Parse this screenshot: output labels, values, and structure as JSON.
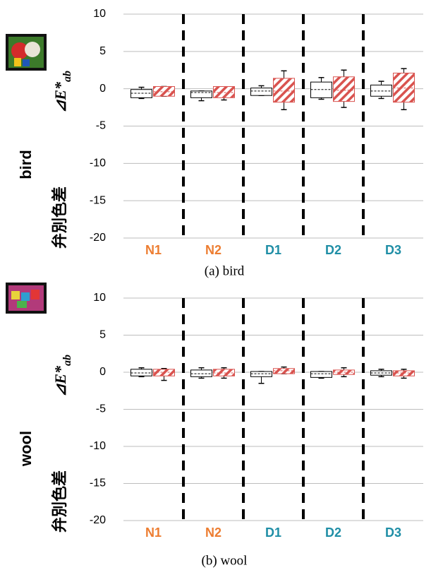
{
  "chart_data": [
    {
      "type": "box",
      "ylabel_name": "bird",
      "ylabel": "弁別色差",
      "ylabel_symbol": "⊿E*",
      "ylabel_subscript": "ab",
      "caption": "(a) bird",
      "categories": [
        "N1",
        "N2",
        "D1",
        "D2",
        "D3"
      ],
      "category_colors": [
        "#ed7d31",
        "#ed7d31",
        "#1f8ea6",
        "#1f8ea6",
        "#1f8ea6"
      ],
      "ylim": [
        -20,
        10
      ],
      "yticks": [
        -20,
        -15,
        -10,
        -5,
        0,
        5,
        10
      ],
      "grid": true,
      "series": [
        {
          "color": "#000000",
          "pattern": "plain",
          "min": [
            -1.3,
            -1.6,
            -0.9,
            -1.4,
            -1.3
          ],
          "q1": [
            -1.2,
            -1.2,
            -0.9,
            -1.2,
            -1.0
          ],
          "median": [
            -0.6,
            -0.5,
            -0.3,
            -0.1,
            -0.3
          ],
          "q3": [
            -0.1,
            -0.3,
            0.1,
            0.9,
            0.5
          ],
          "max": [
            0.2,
            -0.3,
            0.4,
            1.5,
            1.0
          ]
        },
        {
          "color": "#d9534f",
          "pattern": "hatch",
          "min": [
            -1.0,
            -1.5,
            -2.8,
            -2.5,
            -2.8
          ],
          "q1": [
            -1.0,
            -1.2,
            -1.8,
            -1.7,
            -1.8
          ],
          "median": [
            -0.4,
            -0.5,
            -0.3,
            -0.2,
            0.1
          ],
          "q3": [
            0.3,
            0.3,
            1.4,
            1.6,
            2.1
          ],
          "max": [
            0.3,
            0.0,
            2.4,
            2.5,
            2.7
          ]
        }
      ]
    },
    {
      "type": "box",
      "ylabel_name": "wool",
      "ylabel": "弁別色差",
      "ylabel_symbol": "⊿E*",
      "ylabel_subscript": "ab",
      "caption": "(b) wool",
      "categories": [
        "N1",
        "N2",
        "D1",
        "D2",
        "D3"
      ],
      "category_colors": [
        "#ed7d31",
        "#ed7d31",
        "#1f8ea6",
        "#1f8ea6",
        "#1f8ea6"
      ],
      "ylim": [
        -20,
        10
      ],
      "yticks": [
        -20,
        -15,
        -10,
        -5,
        0,
        5,
        10
      ],
      "grid": true,
      "series": [
        {
          "color": "#000000",
          "pattern": "plain",
          "min": [
            -0.6,
            -0.8,
            -1.5,
            -0.8,
            -0.6
          ],
          "q1": [
            -0.5,
            -0.6,
            -0.6,
            -0.7,
            -0.4
          ],
          "median": [
            -0.1,
            -0.2,
            -0.2,
            -0.2,
            -0.1
          ],
          "q3": [
            0.4,
            0.3,
            0.1,
            0.1,
            0.2
          ],
          "max": [
            0.6,
            0.6,
            0.1,
            0.1,
            0.4
          ]
        },
        {
          "color": "#d9534f",
          "pattern": "hatch",
          "min": [
            -1.1,
            -0.8,
            -0.2,
            -0.6,
            -0.8
          ],
          "q1": [
            -0.5,
            -0.5,
            -0.2,
            -0.3,
            -0.5
          ],
          "median": [
            0.0,
            -0.1,
            0.2,
            0.0,
            -0.1
          ],
          "q3": [
            0.4,
            0.4,
            0.5,
            0.3,
            0.2
          ],
          "max": [
            0.5,
            0.6,
            0.7,
            0.6,
            0.4
          ]
        }
      ]
    }
  ]
}
